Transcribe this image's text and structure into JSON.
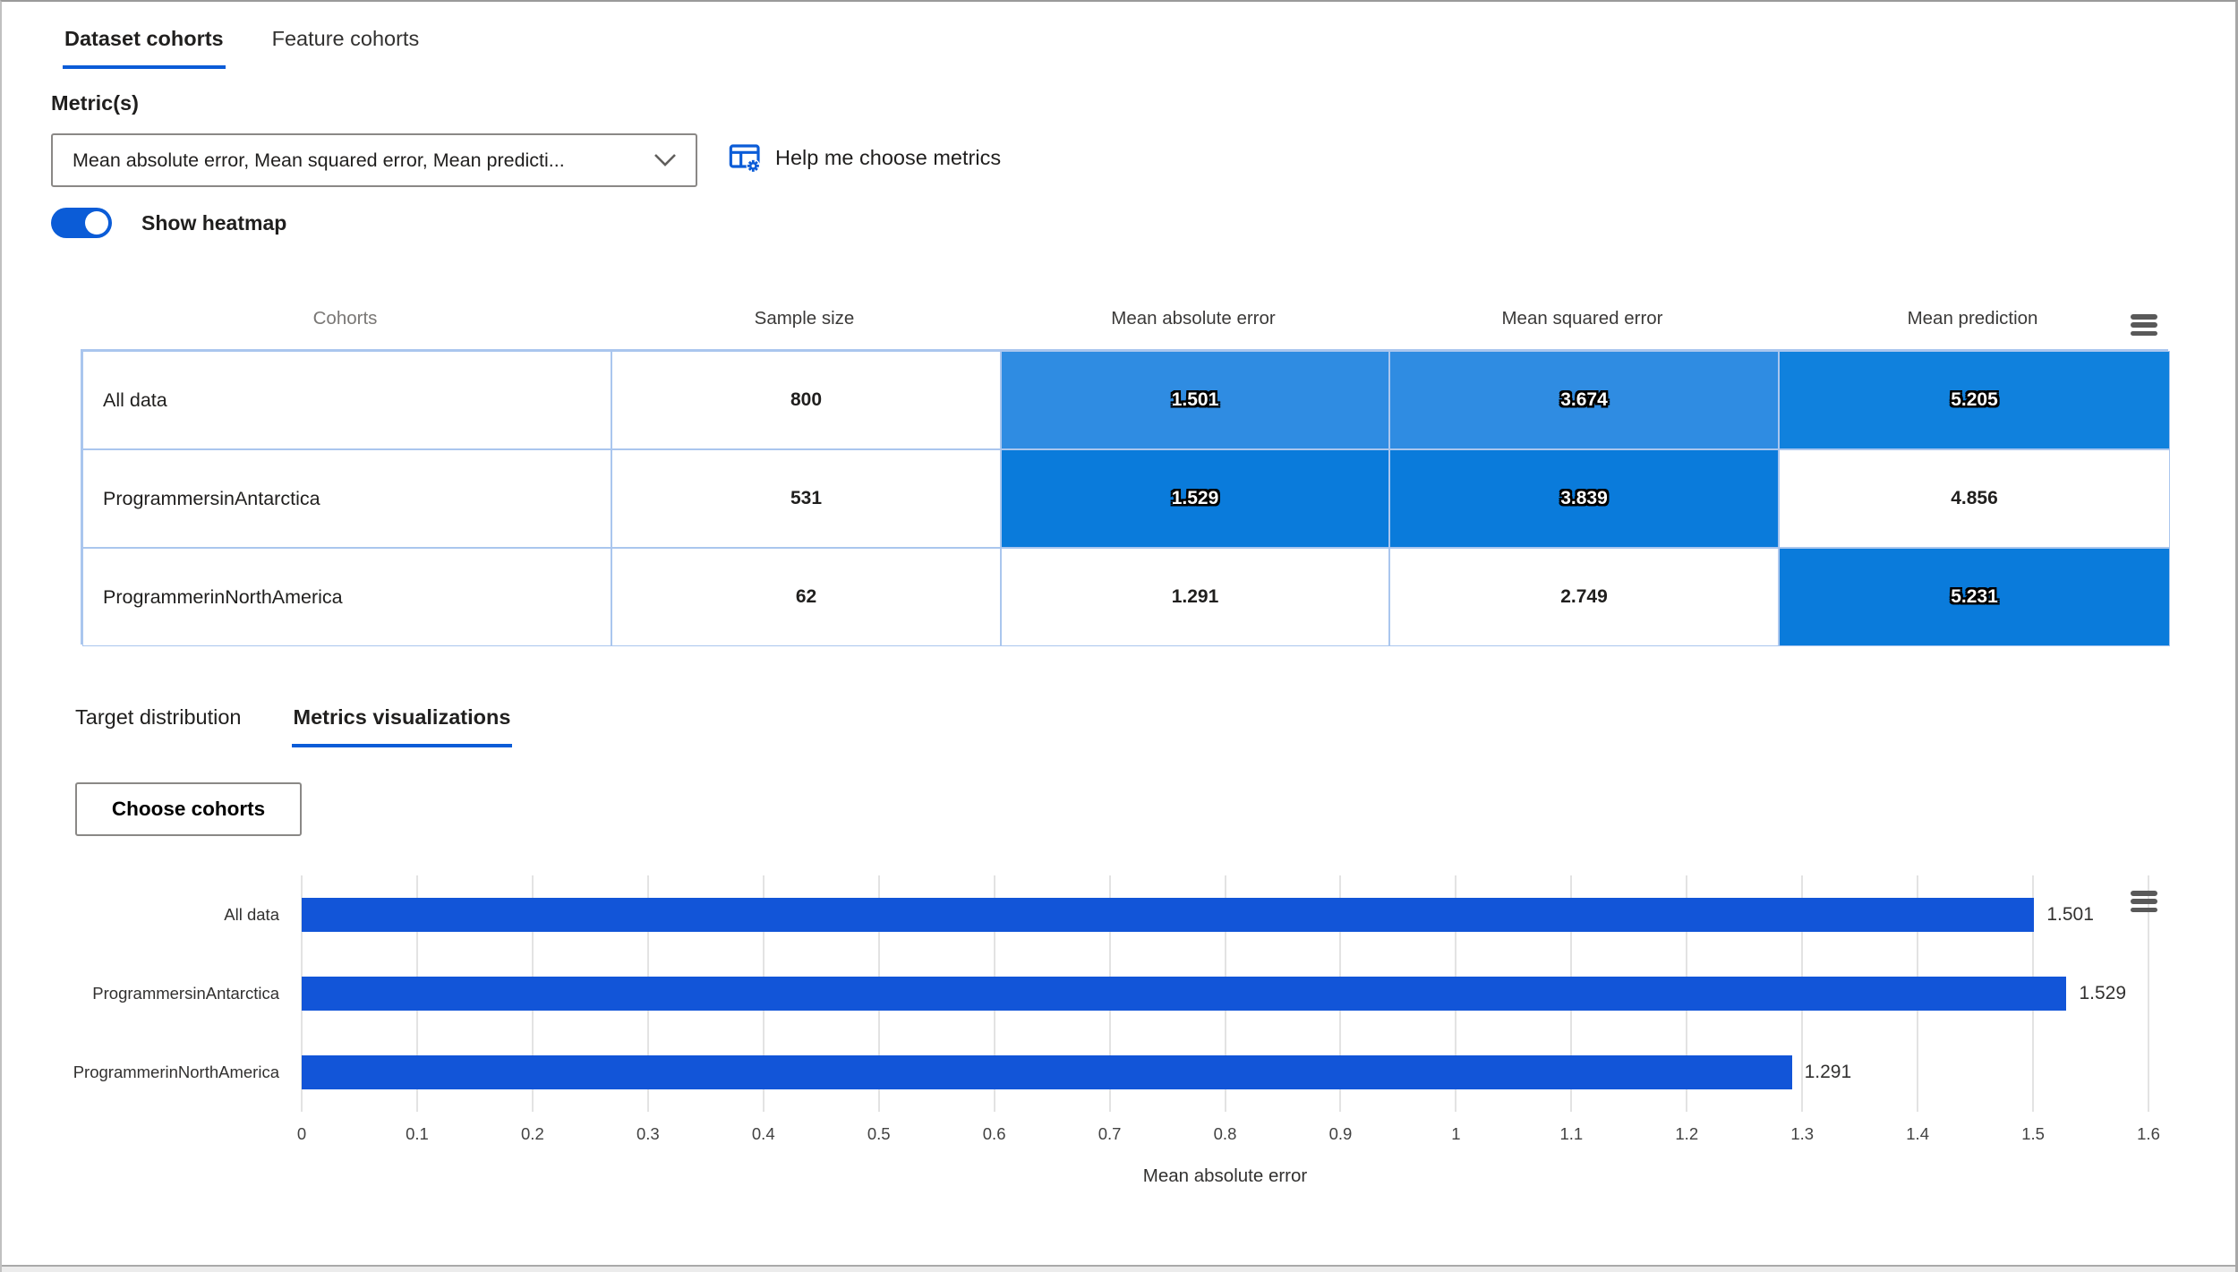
{
  "colors": {
    "accent": "#0b5cd7",
    "bar_blue": "#1255d8",
    "heat_deep": "#0a7bdb",
    "heat_mid": "#1081dd",
    "heat_light": "#2f8ce2",
    "table_border": "#aac6ee"
  },
  "icons": {
    "dropdown_chevron": "chevron-down",
    "help_icon": "table-with-gear",
    "table_menu": "hamburger-menu",
    "chart_menu": "hamburger-menu"
  },
  "tabs": [
    {
      "label": "Dataset cohorts",
      "active": true
    },
    {
      "label": "Feature cohorts",
      "active": false
    }
  ],
  "metrics": {
    "label": "Metric(s)",
    "dropdown_value": "Mean absolute error, Mean squared error, Mean predicti...",
    "help_label": "Help me choose metrics"
  },
  "heatmap_toggle": {
    "label": "Show heatmap",
    "on": true
  },
  "table": {
    "columns": [
      "Cohorts",
      "Sample size",
      "Mean absolute error",
      "Mean squared error",
      "Mean prediction"
    ],
    "rows": [
      {
        "cohort": "All data",
        "sample_size": "800",
        "cells": [
          {
            "value": "1.501",
            "bg": "#2f8ce2",
            "heat": true
          },
          {
            "value": "3.674",
            "bg": "#2f8ce2",
            "heat": true
          },
          {
            "value": "5.205",
            "bg": "#1081dd",
            "heat": true
          }
        ]
      },
      {
        "cohort": "ProgrammersinAntarctica",
        "sample_size": "531",
        "cells": [
          {
            "value": "1.529",
            "bg": "#0a7bdb",
            "heat": true
          },
          {
            "value": "3.839",
            "bg": "#0a7bdb",
            "heat": true
          },
          {
            "value": "4.856",
            "bg": "#ffffff",
            "heat": false
          }
        ]
      },
      {
        "cohort": "ProgrammerinNorthAmerica",
        "sample_size": "62",
        "cells": [
          {
            "value": "1.291",
            "bg": "#ffffff",
            "heat": false
          },
          {
            "value": "2.749",
            "bg": "#ffffff",
            "heat": false
          },
          {
            "value": "5.231",
            "bg": "#0a7bdb",
            "heat": true
          }
        ]
      }
    ]
  },
  "subtabs": [
    {
      "label": "Target distribution",
      "active": false
    },
    {
      "label": "Metrics visualizations",
      "active": true
    }
  ],
  "choose_cohorts_label": "Choose cohorts",
  "chart_data": {
    "type": "bar",
    "orientation": "horizontal",
    "title": "",
    "categories": [
      "All data",
      "ProgrammersinAntarctica",
      "ProgrammerinNorthAmerica"
    ],
    "values": [
      1.501,
      1.529,
      1.291
    ],
    "value_labels": [
      "1.501",
      "1.529",
      "1.291"
    ],
    "xlabel": "Mean absolute error",
    "ylabel": "",
    "xlim": [
      0,
      1.6
    ],
    "xticks": [
      0,
      0.1,
      0.2,
      0.3,
      0.4,
      0.5,
      0.6,
      0.7,
      0.8,
      0.9,
      1,
      1.1,
      1.2,
      1.3,
      1.4,
      1.5,
      1.6
    ],
    "xtick_labels": [
      "0",
      "0.1",
      "0.2",
      "0.3",
      "0.4",
      "0.5",
      "0.6",
      "0.7",
      "0.8",
      "0.9",
      "1",
      "1.1",
      "1.2",
      "1.3",
      "1.4",
      "1.5",
      "1.6"
    ],
    "bar_color": "#1255d8",
    "grid": true,
    "legend": "none"
  }
}
